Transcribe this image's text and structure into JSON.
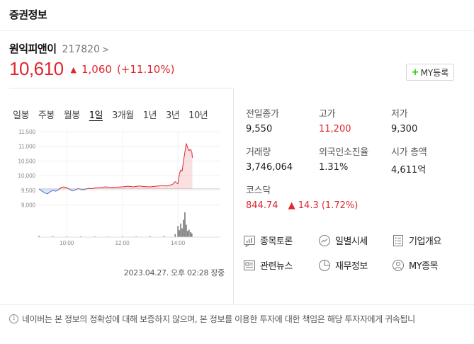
{
  "header": {
    "title": "증권정보"
  },
  "stock": {
    "name": "원익피앤이",
    "code": "217820",
    "code_chevron": ">",
    "price": "10,610",
    "up_symbol": "▲",
    "change": "1,060",
    "change_pct": "(+11.10%)"
  },
  "my_button": {
    "plus": "+",
    "label": "MY등록"
  },
  "chart": {
    "tabs": [
      {
        "label": "일봉"
      },
      {
        "label": "주봉"
      },
      {
        "label": "월봉"
      },
      {
        "label": "1일"
      },
      {
        "label": "3개월"
      },
      {
        "label": "1년"
      },
      {
        "label": "3년"
      },
      {
        "label": "10년"
      }
    ],
    "active_tab": "1일",
    "date": "2023.04.27. 오후 02:28 장중"
  },
  "chart_data": {
    "type": "area",
    "y_ticks": [
      "11,500",
      "11,000",
      "10,500",
      "10,000",
      "9,500",
      "9,000"
    ],
    "x_ticks": [
      "10:00",
      "12:00",
      "14:00"
    ],
    "ylim": [
      8800,
      11500
    ],
    "prev_close": 9550,
    "x_range": [
      9.0,
      15.5
    ],
    "series": [
      {
        "values": [
          [
            9.0,
            9550
          ],
          [
            9.1,
            9480
          ],
          [
            9.2,
            9420
          ],
          [
            9.3,
            9380
          ],
          [
            9.4,
            9450
          ],
          [
            9.5,
            9500
          ],
          [
            9.6,
            9470
          ],
          [
            9.7,
            9520
          ],
          [
            9.8,
            9600
          ],
          [
            9.9,
            9620
          ],
          [
            10.0,
            9590
          ],
          [
            10.1,
            9540
          ],
          [
            10.2,
            9480
          ],
          [
            10.3,
            9510
          ],
          [
            10.4,
            9560
          ],
          [
            10.5,
            9540
          ],
          [
            10.6,
            9520
          ],
          [
            10.7,
            9550
          ],
          [
            10.8,
            9570
          ],
          [
            10.9,
            9560
          ],
          [
            11.0,
            9580
          ],
          [
            11.2,
            9600
          ],
          [
            11.4,
            9620
          ],
          [
            11.6,
            9600
          ],
          [
            11.8,
            9610
          ],
          [
            12.0,
            9620
          ],
          [
            12.2,
            9640
          ],
          [
            12.4,
            9620
          ],
          [
            12.6,
            9650
          ],
          [
            12.8,
            9630
          ],
          [
            13.0,
            9620
          ],
          [
            13.2,
            9640
          ],
          [
            13.4,
            9660
          ],
          [
            13.6,
            9650
          ],
          [
            13.8,
            9700
          ],
          [
            13.9,
            9800
          ],
          [
            14.0,
            9720
          ],
          [
            14.05,
            10050
          ],
          [
            14.1,
            10200
          ],
          [
            14.15,
            10150
          ],
          [
            14.2,
            10500
          ],
          [
            14.25,
            10800
          ],
          [
            14.3,
            11100
          ],
          [
            14.35,
            10950
          ],
          [
            14.4,
            10850
          ],
          [
            14.45,
            10900
          ],
          [
            14.5,
            10800
          ],
          [
            14.52,
            10610
          ]
        ]
      }
    ],
    "volume": [
      [
        9.0,
        0.05
      ],
      [
        9.5,
        0.04
      ],
      [
        10.0,
        0.03
      ],
      [
        10.5,
        0.03
      ],
      [
        11.0,
        0.03
      ],
      [
        11.5,
        0.03
      ],
      [
        12.0,
        0.03
      ],
      [
        12.5,
        0.03
      ],
      [
        13.0,
        0.04
      ],
      [
        13.5,
        0.05
      ],
      [
        13.9,
        0.12
      ],
      [
        14.0,
        0.45
      ],
      [
        14.05,
        0.28
      ],
      [
        14.1,
        0.55
      ],
      [
        14.15,
        0.35
      ],
      [
        14.2,
        0.7
      ],
      [
        14.25,
        1.0
      ],
      [
        14.3,
        0.5
      ],
      [
        14.35,
        0.25
      ],
      [
        14.4,
        0.3
      ],
      [
        14.45,
        0.2
      ],
      [
        14.5,
        0.15
      ]
    ]
  },
  "stats": {
    "prev_close": {
      "label": "전일종가",
      "value": "9,550"
    },
    "high": {
      "label": "고가",
      "value": "11,200"
    },
    "low": {
      "label": "저가",
      "value": "9,300"
    },
    "volume": {
      "label": "거래량",
      "value": "3,746,064"
    },
    "foreign": {
      "label": "외국인소진율",
      "value": "1.31%"
    },
    "mcap": {
      "label": "시가 총액",
      "value": "4,611억"
    },
    "kosdaq": {
      "label": "코스닥",
      "value": "844.74",
      "up_symbol": "▲",
      "change": "14.3 (1.72%)"
    }
  },
  "links": {
    "discussion": "종목토론",
    "daily": "일별시세",
    "company": "기업개요",
    "news": "관련뉴스",
    "finance": "재무정보",
    "my": "MY종목"
  },
  "footer": {
    "info_icon": "i",
    "notice": "네이버는 본 정보의 정확성에 대해 보증하지 않으며, 본 정보를 이용한 투자에 대한 책임은 해당 투자자에게 귀속됩니"
  },
  "colors": {
    "up": "#e0262f",
    "down": "#3f6fd8",
    "accent": "#1ec800"
  }
}
